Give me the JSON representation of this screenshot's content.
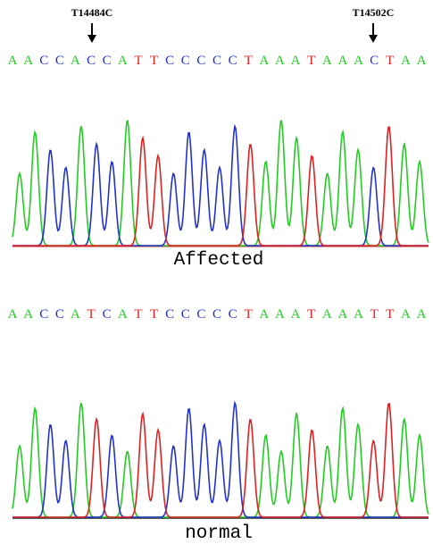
{
  "annotations": [
    "T14484C",
    "T14502C"
  ],
  "panels": [
    {
      "sequence": [
        "A",
        "A",
        "C",
        "C",
        "A",
        "C",
        "C",
        "A",
        "T",
        "T",
        "C",
        "C",
        "C",
        "C",
        "C",
        "T",
        "A",
        "A",
        "A",
        "T",
        "A",
        "A",
        "A",
        "C",
        "T",
        "A",
        "A"
      ],
      "label": "Affected"
    },
    {
      "sequence": [
        "A",
        "A",
        "C",
        "C",
        "A",
        "T",
        "C",
        "A",
        "T",
        "T",
        "C",
        "C",
        "C",
        "C",
        "C",
        "T",
        "A",
        "A",
        "A",
        "T",
        "A",
        "A",
        "A",
        "T",
        "T",
        "A",
        "A"
      ],
      "label": "normal"
    }
  ]
}
